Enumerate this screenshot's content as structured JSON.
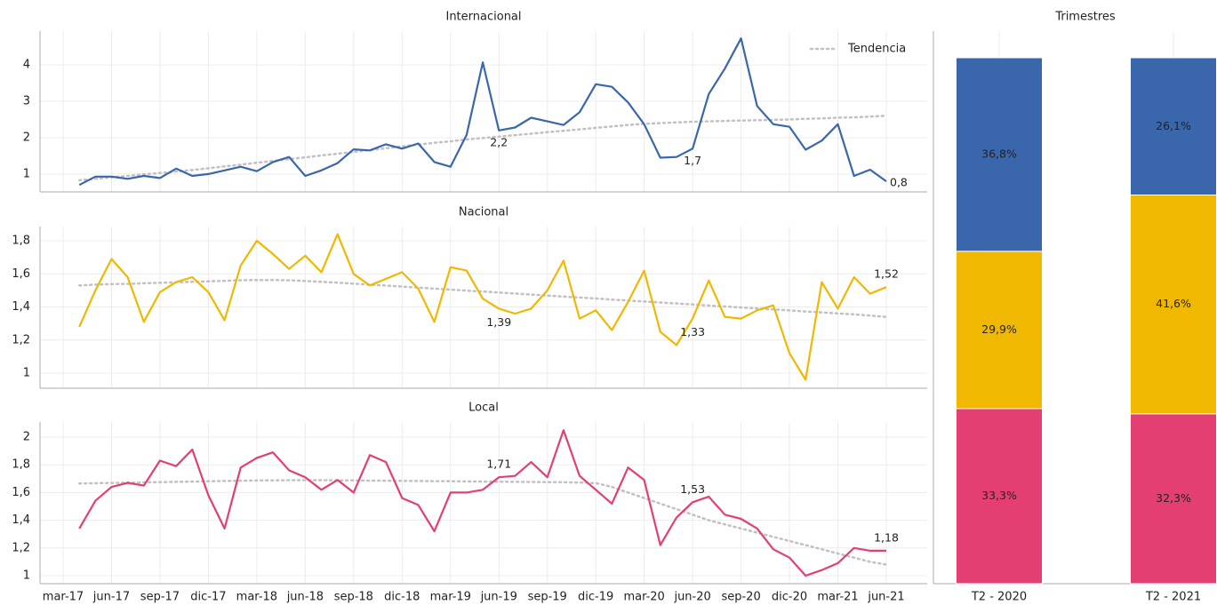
{
  "chart_data": [
    {
      "type": "line",
      "title": "Internacional",
      "grid": true,
      "legend": "upper right",
      "ylim": [
        0.51,
        4.93
      ],
      "yticks": [
        1,
        2,
        3,
        4
      ],
      "series": [
        {
          "color": "#3a67ab",
          "values": [
            null,
            0.7,
            0.93,
            0.93,
            0.87,
            0.95,
            0.89,
            1.15,
            0.95,
            1.0,
            1.1,
            1.2,
            1.08,
            1.33,
            1.47,
            0.95,
            1.1,
            1.3,
            1.68,
            1.65,
            1.82,
            1.7,
            1.84,
            1.33,
            1.2,
            2.08,
            4.07,
            2.2,
            2.28,
            2.55,
            2.45,
            2.35,
            2.7,
            3.47,
            3.4,
            2.97,
            2.37,
            1.45,
            1.47,
            1.7,
            3.2,
            3.9,
            4.73,
            2.87,
            2.37,
            2.3,
            1.67,
            1.92,
            2.37,
            0.95,
            1.12,
            0.8
          ],
          "value_labels": [
            null,
            null,
            null,
            null,
            null,
            null,
            null,
            null,
            null,
            null,
            null,
            null,
            null,
            null,
            null,
            null,
            null,
            null,
            null,
            null,
            null,
            null,
            null,
            null,
            null,
            null,
            null,
            "2,2",
            null,
            null,
            null,
            null,
            null,
            null,
            null,
            null,
            null,
            null,
            null,
            "1,7",
            null,
            null,
            null,
            null,
            null,
            null,
            null,
            null,
            null,
            null,
            null,
            "0,8"
          ]
        },
        {
          "name": "Tendencia",
          "color": "#c4bfc4",
          "style": "dotted",
          "values": [
            null,
            0.83,
            0.87,
            0.91,
            0.95,
            0.99,
            1.03,
            1.07,
            1.11,
            1.16,
            1.21,
            1.26,
            1.31,
            1.36,
            1.41,
            1.46,
            1.51,
            1.56,
            1.61,
            1.66,
            1.71,
            1.76,
            1.81,
            1.86,
            1.9,
            1.95,
            1.99,
            2.03,
            2.07,
            2.11,
            2.15,
            2.19,
            2.23,
            2.27,
            2.31,
            2.35,
            2.38,
            2.4,
            2.42,
            2.44,
            2.45,
            2.46,
            2.47,
            2.48,
            2.49,
            2.5,
            2.52,
            2.53,
            2.55,
            2.56,
            2.58,
            2.6
          ]
        }
      ]
    },
    {
      "type": "line",
      "title": "Nacional",
      "grid": true,
      "ylim": [
        0.909,
        1.886
      ],
      "yticks": [
        1,
        {
          "value": 1.2,
          "label": "1,2"
        },
        {
          "value": 1.4,
          "label": "1,4"
        },
        {
          "value": 1.6,
          "label": "1,6"
        },
        {
          "value": 1.8,
          "label": "1,8"
        }
      ],
      "series": [
        {
          "color": "#f0b800",
          "values": [
            null,
            1.28,
            1.5,
            1.69,
            1.58,
            1.31,
            1.49,
            1.55,
            1.58,
            1.49,
            1.32,
            1.65,
            1.8,
            1.72,
            1.63,
            1.71,
            1.61,
            1.84,
            1.6,
            1.53,
            1.57,
            1.61,
            1.51,
            1.31,
            1.64,
            1.62,
            1.45,
            1.39,
            1.36,
            1.39,
            1.5,
            1.68,
            1.33,
            1.38,
            1.26,
            1.43,
            1.62,
            1.25,
            1.17,
            1.33,
            1.56,
            1.34,
            1.33,
            1.38,
            1.41,
            1.12,
            0.96,
            1.55,
            1.39,
            1.58,
            1.48,
            1.52
          ],
          "value_labels": [
            null,
            null,
            null,
            null,
            null,
            null,
            null,
            null,
            null,
            null,
            null,
            null,
            null,
            null,
            null,
            null,
            null,
            null,
            null,
            null,
            null,
            null,
            null,
            null,
            null,
            null,
            null,
            "1,39",
            null,
            null,
            null,
            null,
            null,
            null,
            null,
            null,
            null,
            null,
            null,
            "1,33",
            null,
            null,
            null,
            null,
            null,
            null,
            null,
            null,
            null,
            null,
            null,
            "1,52"
          ]
        },
        {
          "color": "#c4bfc4",
          "style": "dotted",
          "values": [
            null,
            1.53,
            1.535,
            1.538,
            1.54,
            1.543,
            1.546,
            1.549,
            1.552,
            1.555,
            1.558,
            1.561,
            1.563,
            1.563,
            1.561,
            1.557,
            1.552,
            1.547,
            1.541,
            1.535,
            1.529,
            1.523,
            1.517,
            1.511,
            1.505,
            1.499,
            1.493,
            1.487,
            1.481,
            1.475,
            1.469,
            1.463,
            1.457,
            1.451,
            1.445,
            1.439,
            1.433,
            1.427,
            1.421,
            1.415,
            1.409,
            1.403,
            1.397,
            1.391,
            1.385,
            1.379,
            1.373,
            1.367,
            1.361,
            1.355,
            1.348,
            1.34
          ]
        }
      ]
    },
    {
      "type": "line",
      "title": "Local",
      "grid": true,
      "categories": [
        "mar-17",
        null,
        null,
        "jun-17",
        null,
        null,
        "sep-17",
        null,
        null,
        "dic-17",
        null,
        null,
        "mar-18",
        null,
        null,
        "jun-18",
        null,
        null,
        "sep-18",
        null,
        null,
        "dic-18",
        null,
        null,
        "mar-19",
        null,
        null,
        "jun-19",
        null,
        null,
        "sep-19",
        null,
        null,
        "dic-19",
        null,
        null,
        "mar-20",
        null,
        null,
        "jun-20",
        null,
        null,
        "sep-20",
        null,
        null,
        "dic-20",
        null,
        null,
        "mar-21",
        null,
        null,
        "jun-21"
      ],
      "ylim": [
        0.942,
        2.109
      ],
      "yticks": [
        1,
        {
          "value": 1.2,
          "label": "1,2"
        },
        {
          "value": 1.4,
          "label": "1,4"
        },
        {
          "value": 1.6,
          "label": "1,6"
        },
        {
          "value": 1.8,
          "label": "1,8"
        },
        2
      ],
      "series": [
        {
          "color": "#e33f72",
          "values": [
            null,
            1.34,
            1.54,
            1.64,
            1.67,
            1.65,
            1.83,
            1.79,
            1.91,
            1.58,
            1.34,
            1.78,
            1.85,
            1.89,
            1.76,
            1.71,
            1.62,
            1.69,
            1.6,
            1.87,
            1.82,
            1.56,
            1.51,
            1.32,
            1.6,
            1.6,
            1.62,
            1.71,
            1.72,
            1.82,
            1.71,
            2.05,
            1.72,
            1.62,
            1.52,
            1.78,
            1.69,
            1.22,
            1.42,
            1.53,
            1.57,
            1.44,
            1.41,
            1.34,
            1.19,
            1.13,
            1.0,
            1.04,
            1.09,
            1.2,
            1.18,
            1.18
          ],
          "value_labels": [
            null,
            null,
            null,
            null,
            null,
            null,
            null,
            null,
            null,
            null,
            null,
            null,
            null,
            null,
            null,
            null,
            null,
            null,
            null,
            null,
            null,
            null,
            null,
            null,
            null,
            null,
            null,
            "1,71",
            null,
            null,
            null,
            null,
            null,
            null,
            null,
            null,
            null,
            null,
            null,
            "1,53",
            null,
            null,
            null,
            null,
            null,
            null,
            null,
            null,
            null,
            null,
            null,
            "1,18"
          ]
        },
        {
          "color": "#c4bfc4",
          "style": "dotted",
          "values": [
            null,
            1.665,
            1.667,
            1.669,
            1.671,
            1.673,
            1.675,
            1.677,
            1.679,
            1.681,
            1.683,
            1.685,
            1.687,
            1.688,
            1.689,
            1.689,
            1.689,
            1.688,
            1.687,
            1.686,
            1.685,
            1.684,
            1.683,
            1.682,
            1.681,
            1.68,
            1.679,
            1.678,
            1.677,
            1.676,
            1.675,
            1.674,
            1.672,
            1.668,
            1.64,
            1.6,
            1.56,
            1.52,
            1.48,
            1.44,
            1.4,
            1.37,
            1.34,
            1.31,
            1.28,
            1.25,
            1.22,
            1.19,
            1.16,
            1.13,
            1.1,
            1.08
          ]
        }
      ]
    },
    {
      "type": "bar",
      "stacked": true,
      "title": "Trimestres",
      "categories": [
        "T2 - 2020",
        "T2 - 2021"
      ],
      "ylim": [
        0,
        100
      ],
      "series": [
        {
          "color": "#e33f72",
          "values": [
            33.3,
            32.3
          ],
          "value_labels": [
            "33,3%",
            "32,3%"
          ]
        },
        {
          "color": "#f0b800",
          "values": [
            29.9,
            41.6
          ],
          "value_labels": [
            "29,9%",
            "41,6%"
          ]
        },
        {
          "color": "#3a67ab",
          "values": [
            36.8,
            26.1
          ],
          "value_labels": [
            "36,8%",
            "26,1%"
          ]
        }
      ]
    }
  ]
}
